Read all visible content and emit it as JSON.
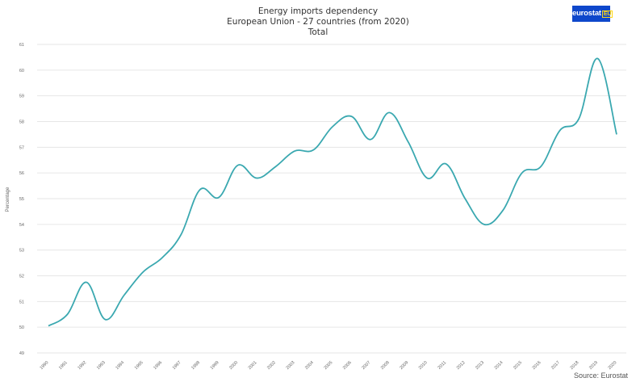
{
  "header": {
    "title_line1": "Energy imports dependency",
    "title_line2": "European Union - 27 countries (from 2020)",
    "title_line3": "Total",
    "logo_text": "eurostat",
    "logo_badge": "EU"
  },
  "footer": {
    "source": "Source: Eurostat"
  },
  "colors": {
    "line": "#3aa8b0",
    "grid": "#e6e6e6",
    "logo": "#0e47cb"
  },
  "chart_data": {
    "type": "line",
    "title": "Energy imports dependency",
    "subtitle": "European Union - 27 countries (from 2020)",
    "series_label": "Total",
    "xlabel": "",
    "ylabel": "Percentage",
    "ylim": [
      49,
      61
    ],
    "yticks": [
      "49",
      "50",
      "51",
      "52",
      "53",
      "54",
      "55",
      "56",
      "57",
      "58",
      "59",
      "60",
      "61"
    ],
    "grid": true,
    "x": [
      "1990",
      "1991",
      "1992",
      "1993",
      "1994",
      "1995",
      "1996",
      "1997",
      "1998",
      "1999",
      "2000",
      "2001",
      "2002",
      "2003",
      "2004",
      "2005",
      "2006",
      "2007",
      "2008",
      "2009",
      "2010",
      "2011",
      "2012",
      "2013",
      "2014",
      "2015",
      "2016",
      "2017",
      "2018",
      "2019",
      "2020"
    ],
    "series": [
      {
        "values": [
          50.05,
          50.5,
          51.75,
          50.3,
          51.25,
          52.15,
          52.7,
          53.6,
          55.35,
          55.05,
          56.3,
          55.8,
          56.25,
          56.85,
          56.9,
          57.8,
          58.2,
          57.3,
          58.35,
          57.2,
          55.8,
          56.35,
          55.0,
          54.0,
          54.55,
          56.0,
          56.25,
          57.65,
          58.1,
          60.45,
          57.5
        ]
      }
    ]
  }
}
